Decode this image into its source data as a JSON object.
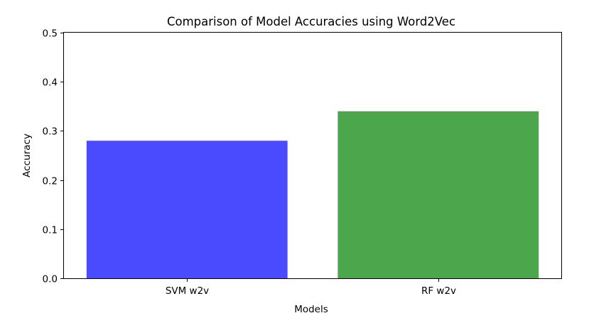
{
  "chart_data": {
    "type": "bar",
    "title": "Comparison of Model Accuracies using Word2Vec",
    "xlabel": "Models",
    "ylabel": "Accuracy",
    "categories": [
      "SVM w2v",
      "RF w2v"
    ],
    "values": [
      0.28,
      0.34
    ],
    "colors": [
      "#4a4aff",
      "#4ca64c"
    ],
    "ylim": [
      0,
      0.5
    ],
    "yticks": [
      0.0,
      0.1,
      0.2,
      0.3,
      0.4,
      0.5
    ],
    "ytick_labels": [
      "0.0",
      "0.1",
      "0.2",
      "0.3",
      "0.4",
      "0.5"
    ],
    "grid": false,
    "legend": "none"
  }
}
